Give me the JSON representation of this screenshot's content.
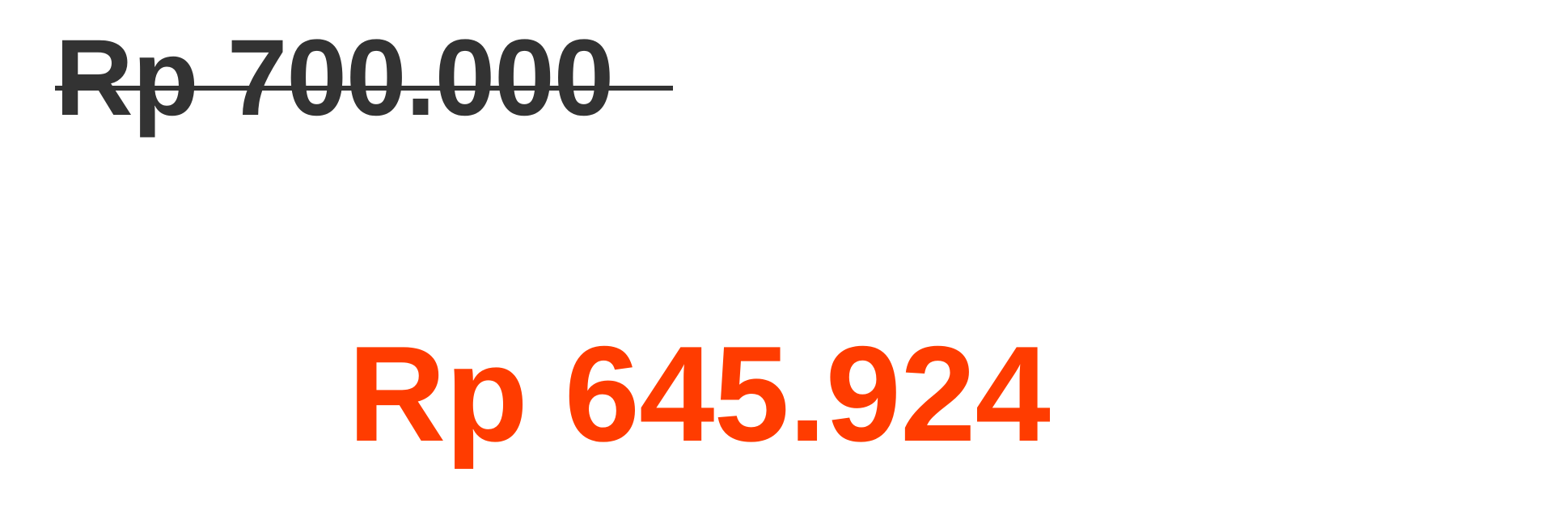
{
  "price": {
    "original": "Rp 700.000",
    "sale": "Rp 645.924",
    "original_color": "#333333",
    "sale_color": "#ff3c00",
    "original_struck_through": true
  }
}
